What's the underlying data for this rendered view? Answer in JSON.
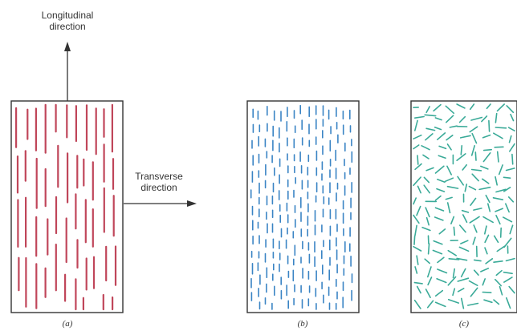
{
  "labels": {
    "longitudinal_line1": "Longitudinal",
    "longitudinal_line2": "direction",
    "transverse_line1": "Transverse",
    "transverse_line2": "direction"
  },
  "panels": [
    {
      "caption": "(a)",
      "arrangement": "continuous-aligned",
      "fiber_color": "#c0465a"
    },
    {
      "caption": "(b)",
      "arrangement": "discontinuous-aligned",
      "fiber_color": "#3a84c4"
    },
    {
      "caption": "(c)",
      "arrangement": "discontinuous-random",
      "fiber_color": "#3aaa98"
    }
  ],
  "colors": {
    "frame": "#333333",
    "arrow": "#333333",
    "text": "#333333"
  }
}
